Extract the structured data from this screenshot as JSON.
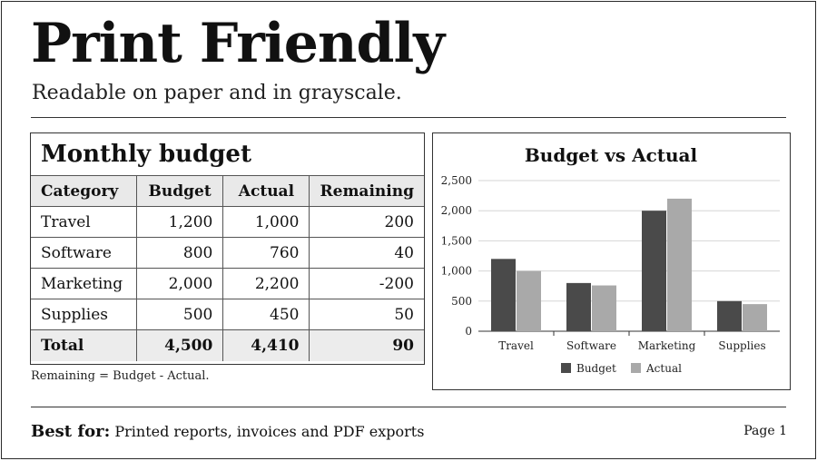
{
  "header": {
    "title": "Print Friendly",
    "subtitle": "Readable on paper and in grayscale."
  },
  "budget_table": {
    "title": "Monthly budget",
    "columns": [
      "Category",
      "Budget",
      "Actual",
      "Remaining"
    ],
    "rows": [
      [
        "Travel",
        "1,200",
        "1,000",
        "200"
      ],
      [
        "Software",
        "800",
        "760",
        "40"
      ],
      [
        "Marketing",
        "2,000",
        "2,200",
        "-200"
      ],
      [
        "Supplies",
        "500",
        "450",
        "50"
      ]
    ],
    "total": [
      "Total",
      "4,500",
      "4,410",
      "90"
    ],
    "footnote": "Remaining = Budget - Actual."
  },
  "chart_data": {
    "type": "bar",
    "title": "Budget vs Actual",
    "categories": [
      "Travel",
      "Software",
      "Marketing",
      "Supplies"
    ],
    "series": [
      {
        "name": "Budget",
        "values": [
          1200,
          800,
          2000,
          500
        ],
        "color": "#4a4a4a"
      },
      {
        "name": "Actual",
        "values": [
          1000,
          760,
          2200,
          450
        ],
        "color": "#a9a9a9"
      }
    ],
    "ylim": [
      0,
      2500
    ],
    "yticks": [
      "0",
      "500",
      "1,000",
      "1,500",
      "2,000",
      "2,500"
    ],
    "ytick_values": [
      0,
      500,
      1000,
      1500,
      2000,
      2500
    ],
    "grid": true,
    "legend": "bottom"
  },
  "footer": {
    "label": "Best for:",
    "text": "Printed reports, invoices and PDF exports",
    "page": "Page 1"
  }
}
